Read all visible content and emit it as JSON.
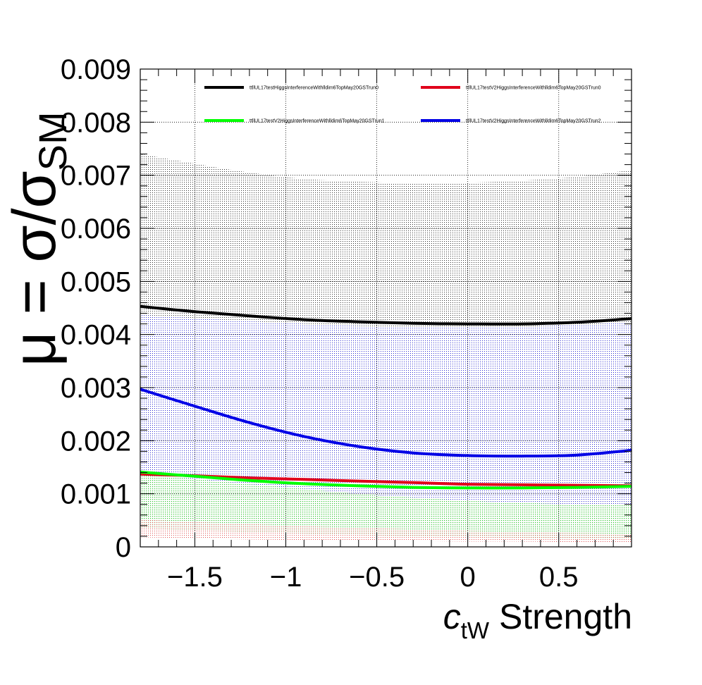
{
  "chart_data": {
    "type": "line",
    "ylabel_parts": [
      "μ = σ/σ",
      "SM"
    ],
    "xlabel_parts": [
      "c",
      "tW",
      " Strength"
    ],
    "xlim": [
      -1.8,
      0.9
    ],
    "ylim": [
      0,
      0.009
    ],
    "grid": true,
    "legend_position": "top",
    "x_ticks": [
      -1.5,
      -1,
      -0.5,
      0,
      0.5
    ],
    "x_tick_labels": [
      "−1.5",
      "−1",
      "−0.5",
      "0",
      "0.5"
    ],
    "y_ticks": [
      0,
      0.001,
      0.002,
      0.003,
      0.004,
      0.005,
      0.006,
      0.007,
      0.008,
      0.009
    ],
    "y_tick_labels": [
      "0",
      "0.001",
      "0.002",
      "0.003",
      "0.004",
      "0.005",
      "0.006",
      "0.007",
      "0.008",
      "0.009"
    ],
    "x": [
      -1.8,
      -1.5,
      -1.2,
      -0.9,
      -0.6,
      -0.3,
      0.0,
      0.3,
      0.6,
      0.9
    ],
    "series": [
      {
        "name": "ttllUL17testHiggsInterferenceWithlldim6TopMay20GSTrun0",
        "color": "#000000",
        "band_color": "#555555",
        "values": [
          0.00453,
          0.00443,
          0.00435,
          0.00428,
          0.00424,
          0.00421,
          0.0042,
          0.0042,
          0.00423,
          0.0043
        ],
        "band_upper": [
          0.0074,
          0.00722,
          0.00705,
          0.00693,
          0.00688,
          0.00685,
          0.00686,
          0.0069,
          0.00697,
          0.0071
        ],
        "band_lower": [
          0.00053,
          0.00048,
          0.00043,
          0.00039,
          0.00035,
          0.00031,
          0.00029,
          0.00027,
          0.00025,
          0.00024
        ]
      },
      {
        "name": "ttllUL17testV2HiggsInterferenceWithlldim6TopMay20GSTrun0",
        "color": "#e0001b",
        "band_color": "#f08080",
        "values": [
          0.00137,
          0.00134,
          0.0013,
          0.00127,
          0.00124,
          0.00121,
          0.00118,
          0.00117,
          0.00116,
          0.00115
        ],
        "band_upper": [
          0.00052,
          0.00047,
          0.00043,
          0.00039,
          0.00036,
          0.00033,
          0.0003,
          0.00028,
          0.00026,
          0.00025
        ],
        "band_lower": [
          0.00018,
          0.00016,
          0.00014,
          0.00013,
          0.00012,
          0.00011,
          0.0001,
          0.0001,
          9e-05,
          9e-05
        ]
      },
      {
        "name": "ttllUL17testV2HiggsInterferenceWithlldim6TopMay20GSTrun1",
        "color": "#00ff00",
        "band_color": "#6ee06e",
        "values": [
          0.00141,
          0.00133,
          0.00125,
          0.00119,
          0.00115,
          0.00112,
          0.00111,
          0.00111,
          0.00112,
          0.00114
        ],
        "band_upper": [
          0.00138,
          0.00128,
          0.00118,
          0.00109,
          0.001,
          0.00093,
          0.00087,
          0.00083,
          0.0008,
          0.00079
        ],
        "band_lower": [
          0.00035,
          0.00031,
          0.00028,
          0.00025,
          0.00022,
          0.0002,
          0.00018,
          0.00017,
          0.00016,
          0.00015
        ]
      },
      {
        "name": "ttllUL17testV2HiggsInterferenceWithlldim6TopMay20GSTrun2",
        "color": "#0000e6",
        "band_color": "#3a3ad0",
        "values": [
          0.00297,
          0.00265,
          0.00234,
          0.00208,
          0.00189,
          0.00177,
          0.00172,
          0.00171,
          0.00173,
          0.00182
        ],
        "band_upper": [
          0.00437,
          0.00431,
          0.00425,
          0.0042,
          0.00416,
          0.00414,
          0.00414,
          0.00415,
          0.00418,
          0.00423
        ],
        "band_lower": [
          0.0008,
          0.00072,
          0.00064,
          0.00057,
          0.00052,
          0.00048,
          0.00046,
          0.00046,
          0.00047,
          0.0005
        ]
      }
    ]
  }
}
